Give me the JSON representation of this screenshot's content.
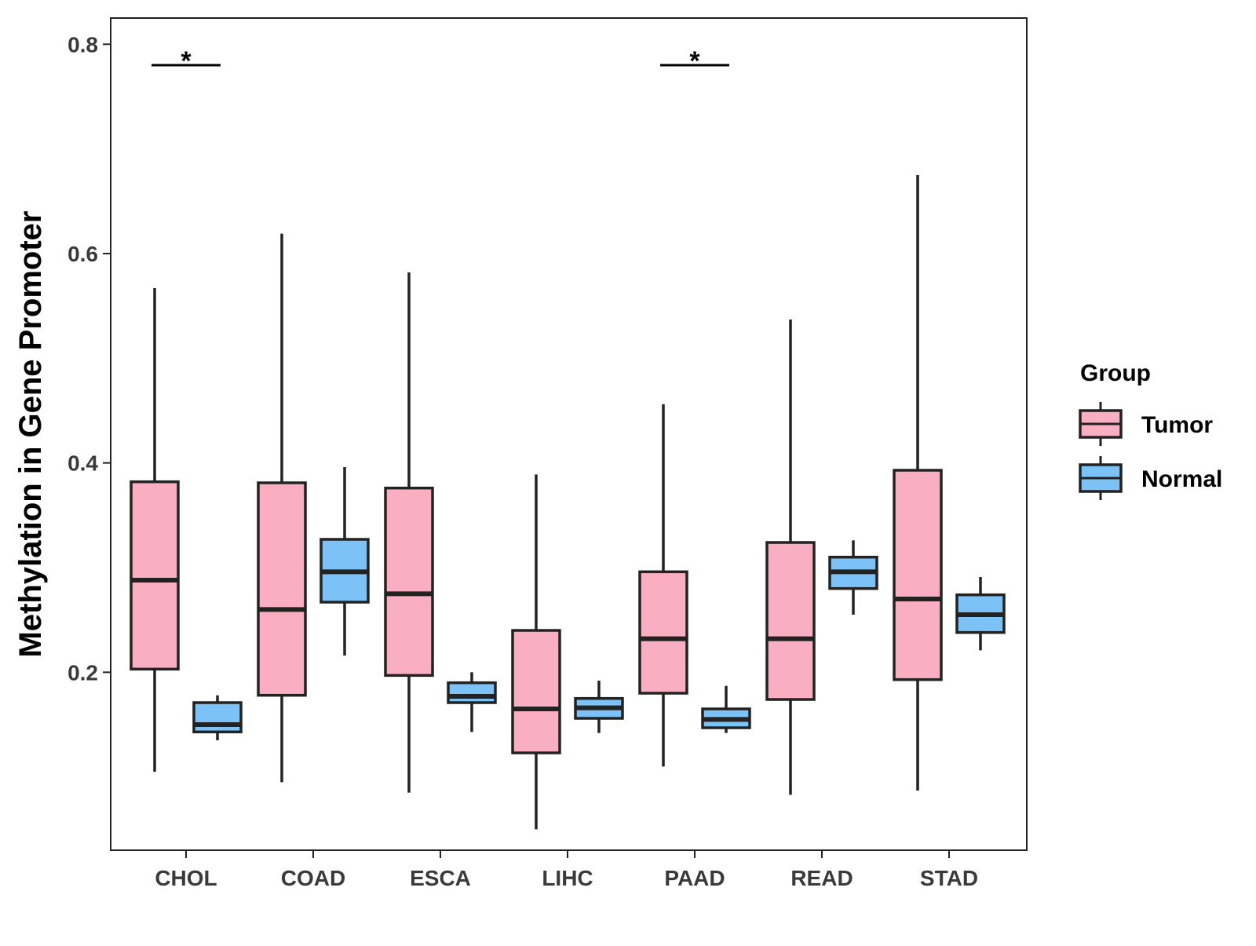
{
  "chart_data": {
    "type": "boxplot",
    "title": "",
    "xlabel": "",
    "ylabel": "Methylation in Gene Promoter",
    "ylim": [
      0.03,
      0.825
    ],
    "yticks": [
      0.2,
      0.4,
      0.6,
      0.8
    ],
    "ytick_labels": [
      "0.2",
      "0.4",
      "0.6",
      "0.8"
    ],
    "grid": false,
    "categories": [
      "CHOL",
      "COAD",
      "ESCA",
      "LIHC",
      "PAAD",
      "READ",
      "STAD"
    ],
    "legend": {
      "title": "Group",
      "position": "right",
      "entries": [
        {
          "name": "Tumor",
          "color": "#F9AFC1"
        },
        {
          "name": "Normal",
          "color": "#7CC2F6"
        }
      ]
    },
    "series": [
      {
        "name": "Tumor",
        "color": "#F9AFC1",
        "boxes": [
          {
            "category": "CHOL",
            "whisker_low": 0.105,
            "q1": 0.203,
            "median": 0.288,
            "q3": 0.382,
            "whisker_high": 0.567
          },
          {
            "category": "COAD",
            "whisker_low": 0.095,
            "q1": 0.178,
            "median": 0.26,
            "q3": 0.381,
            "whisker_high": 0.619
          },
          {
            "category": "ESCA",
            "whisker_low": 0.085,
            "q1": 0.197,
            "median": 0.275,
            "q3": 0.376,
            "whisker_high": 0.582
          },
          {
            "category": "LIHC",
            "whisker_low": 0.05,
            "q1": 0.123,
            "median": 0.165,
            "q3": 0.24,
            "whisker_high": 0.389
          },
          {
            "category": "PAAD",
            "whisker_low": 0.11,
            "q1": 0.18,
            "median": 0.232,
            "q3": 0.296,
            "whisker_high": 0.456
          },
          {
            "category": "READ",
            "whisker_low": 0.083,
            "q1": 0.174,
            "median": 0.232,
            "q3": 0.324,
            "whisker_high": 0.537
          },
          {
            "category": "STAD",
            "whisker_low": 0.087,
            "q1": 0.193,
            "median": 0.27,
            "q3": 0.393,
            "whisker_high": 0.675
          }
        ]
      },
      {
        "name": "Normal",
        "color": "#7CC2F6",
        "boxes": [
          {
            "category": "CHOL",
            "whisker_low": 0.135,
            "q1": 0.143,
            "median": 0.15,
            "q3": 0.171,
            "whisker_high": 0.178
          },
          {
            "category": "COAD",
            "whisker_low": 0.216,
            "q1": 0.267,
            "median": 0.296,
            "q3": 0.327,
            "whisker_high": 0.396
          },
          {
            "category": "ESCA",
            "whisker_low": 0.143,
            "q1": 0.171,
            "median": 0.177,
            "q3": 0.19,
            "whisker_high": 0.2
          },
          {
            "category": "LIHC",
            "whisker_low": 0.142,
            "q1": 0.156,
            "median": 0.166,
            "q3": 0.175,
            "whisker_high": 0.192
          },
          {
            "category": "PAAD",
            "whisker_low": 0.142,
            "q1": 0.147,
            "median": 0.155,
            "q3": 0.165,
            "whisker_high": 0.187
          },
          {
            "category": "READ",
            "whisker_low": 0.255,
            "q1": 0.28,
            "median": 0.296,
            "q3": 0.31,
            "whisker_high": 0.326
          },
          {
            "category": "STAD",
            "whisker_low": 0.221,
            "q1": 0.238,
            "median": 0.255,
            "q3": 0.274,
            "whisker_high": 0.291
          }
        ]
      }
    ],
    "annotations": [
      {
        "category": "CHOL",
        "text": "*",
        "y": 0.78
      },
      {
        "category": "PAAD",
        "text": "*",
        "y": 0.78
      }
    ]
  }
}
